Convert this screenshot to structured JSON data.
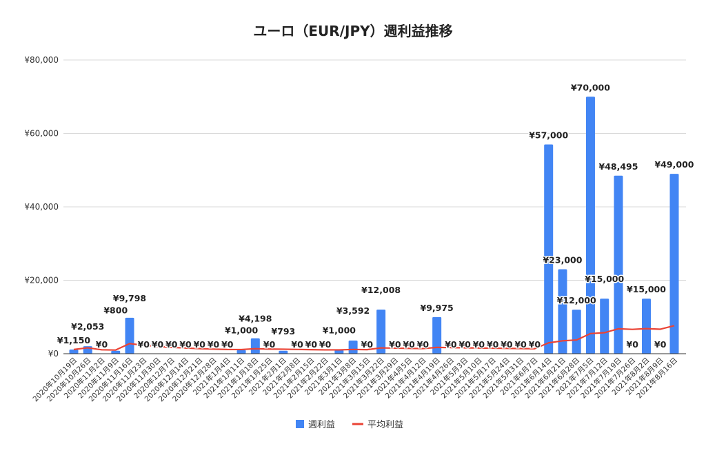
{
  "chart_data": {
    "type": "bar",
    "title": "ユーロ（EUR/JPY）週利益推移",
    "xlabel": "",
    "ylabel": "",
    "ylim": [
      0,
      80000
    ],
    "yticks": [
      "¥0",
      "¥20,000",
      "¥40,000",
      "¥60,000",
      "¥80,000"
    ],
    "ytick_values": [
      0,
      20000,
      40000,
      60000,
      80000
    ],
    "grid": true,
    "legend": "bottom",
    "categories": [
      "2020年10月19日",
      "2020年10月26日",
      "2020年11月2日",
      "2020年11月9日",
      "2020年11月16日",
      "2020年11月23日",
      "2020年11月30日",
      "2020年12月7日",
      "2020年12月14日",
      "2020年12月21日",
      "2020年12月28日",
      "2021年1月4日",
      "2021年1月11日",
      "2021年1月18日",
      "2021年1月25日",
      "2021年2月1日",
      "2021年2月8日",
      "2021年2月15日",
      "2021年2月22日",
      "2021年3月1日",
      "2021年3月8日",
      "2021年3月15日",
      "2021年3月22日",
      "2021年3月29日",
      "2021年4月5日",
      "2021年4月12日",
      "2021年4月19日",
      "2021年4月26日",
      "2021年5月3日",
      "2021年5月10日",
      "2021年5月17日",
      "2021年5月24日",
      "2021年5月31日",
      "2021年6月7日",
      "2021年6月14日",
      "2021年6月21日",
      "2021年6月28日",
      "2021年7月5日",
      "2021年7月12日",
      "2021年7月19日",
      "2021年7月26日",
      "2021年8月2日",
      "2021年8月9日",
      "2021年8月16日"
    ],
    "series": [
      {
        "name": "週利益",
        "type": "bar",
        "color": "#4285f4",
        "values": [
          1150,
          2053,
          0,
          800,
          9798,
          0,
          0,
          0,
          0,
          0,
          0,
          0,
          1000,
          4198,
          0,
          793,
          0,
          0,
          0,
          1000,
          3592,
          0,
          12008,
          0,
          0,
          0,
          9975,
          0,
          0,
          0,
          0,
          0,
          0,
          0,
          57000,
          23000,
          12000,
          70000,
          15000,
          48495,
          0,
          15000,
          0,
          49000
        ],
        "data_labels": [
          "¥1,150",
          "¥2,053",
          "¥0",
          "¥800",
          "¥9,798",
          "¥0",
          "¥0",
          "¥0",
          "¥0",
          "¥0",
          "¥0",
          "¥0",
          "¥1,000",
          "¥4,198",
          "¥0",
          "¥793",
          "¥0",
          "¥0",
          "¥0",
          "¥1,000",
          "¥3,592",
          "¥0",
          "¥12,008",
          "¥0",
          "¥0",
          "¥0",
          "¥9,975",
          "¥0",
          "¥0",
          "¥0",
          "¥0",
          "¥0",
          "¥0",
          "¥0",
          "¥57,000",
          "¥23,000",
          "¥12,000",
          "¥70,000",
          "¥15,000",
          "¥48,495",
          "¥0",
          "¥15,000",
          "¥0",
          "¥49,000"
        ]
      },
      {
        "name": "平均利益",
        "type": "line",
        "color": "#ea4335",
        "values": [
          1150,
          1602,
          1068,
          1001,
          2760,
          2300,
          1972,
          1725,
          1533,
          1380,
          1255,
          1150,
          1139,
          1357,
          1267,
          1237,
          1164,
          1100,
          1042,
          1040,
          1161,
          1108,
          1582,
          1516,
          1456,
          1400,
          1717,
          1656,
          1599,
          1546,
          1496,
          1449,
          1405,
          1364,
          2953,
          3510,
          3740,
          5483,
          5727,
          6797,
          6631,
          6830,
          6671,
          7633
        ]
      }
    ]
  }
}
